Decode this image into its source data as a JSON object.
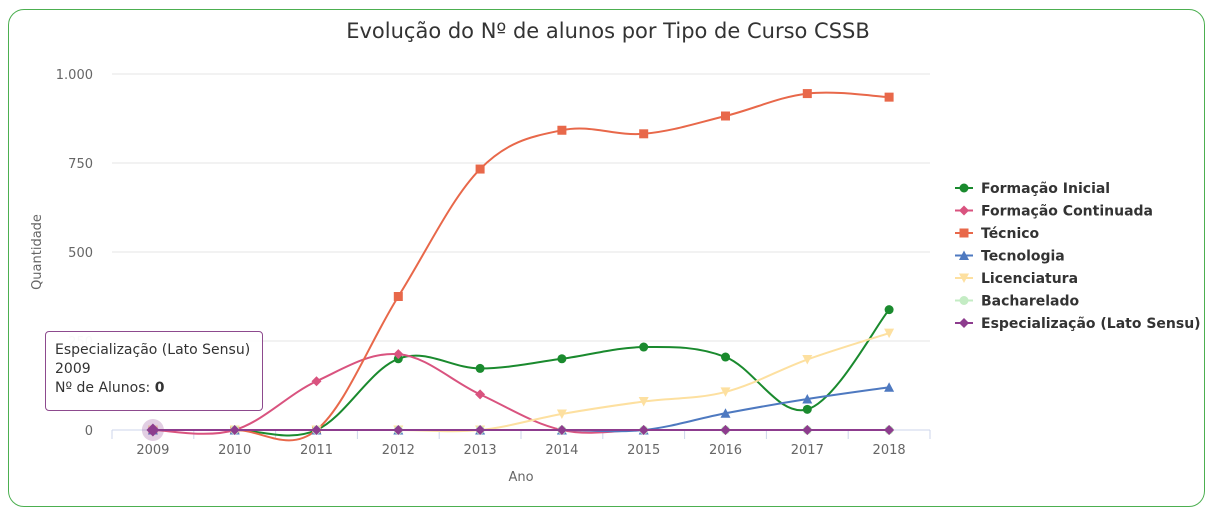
{
  "chart_data": {
    "type": "line",
    "title": "Evolução do Nº de alunos por Tipo de Curso CSSB",
    "xlabel": "Ano",
    "ylabel": "Quantidade",
    "categories": [
      "2009",
      "2010",
      "2011",
      "2012",
      "2013",
      "2014",
      "2015",
      "2016",
      "2017",
      "2018"
    ],
    "ylim": [
      0,
      1000
    ],
    "yticks": [
      0,
      250,
      500,
      750,
      1000
    ],
    "ytick_labels": [
      "0",
      "250",
      "500",
      "750",
      "1.000"
    ],
    "grid": true,
    "legend_position": "right",
    "series": [
      {
        "name": "Formação Inicial",
        "color": "#1a8a2e",
        "marker": "circle",
        "values": [
          0,
          0,
          0,
          200,
          173,
          200,
          233,
          205,
          58,
          338
        ]
      },
      {
        "name": "Formação Continuada",
        "color": "#d9537f",
        "marker": "diamond",
        "values": [
          0,
          0,
          137,
          213,
          100,
          0,
          0,
          0,
          0,
          0
        ]
      },
      {
        "name": "Técnico",
        "color": "#e8684a",
        "marker": "square",
        "values": [
          0,
          0,
          0,
          375,
          733,
          842,
          832,
          882,
          945,
          935
        ]
      },
      {
        "name": "Tecnologia",
        "color": "#4e79c0",
        "marker": "triangle",
        "values": [
          0,
          0,
          0,
          0,
          0,
          0,
          0,
          47,
          87,
          120
        ]
      },
      {
        "name": "Licenciatura",
        "color": "#fde0a0",
        "marker": "triangle-down",
        "values": [
          0,
          0,
          0,
          0,
          0,
          45,
          80,
          107,
          198,
          272
        ]
      },
      {
        "name": "Bacharelado",
        "color": "#c4ecc4",
        "marker": "circle",
        "values": [
          0,
          0,
          0,
          0,
          0,
          0,
          0,
          0,
          0,
          0
        ]
      },
      {
        "name": "Especialização (Lato Sensu)",
        "color": "#8d3c8e",
        "marker": "diamond",
        "values": [
          0,
          0,
          0,
          0,
          0,
          0,
          0,
          0,
          0,
          0
        ]
      }
    ]
  },
  "tooltip": {
    "series": "Especialização (Lato Sensu)",
    "category": "2009",
    "label": "Nº de Alunos: ",
    "value": "0"
  }
}
